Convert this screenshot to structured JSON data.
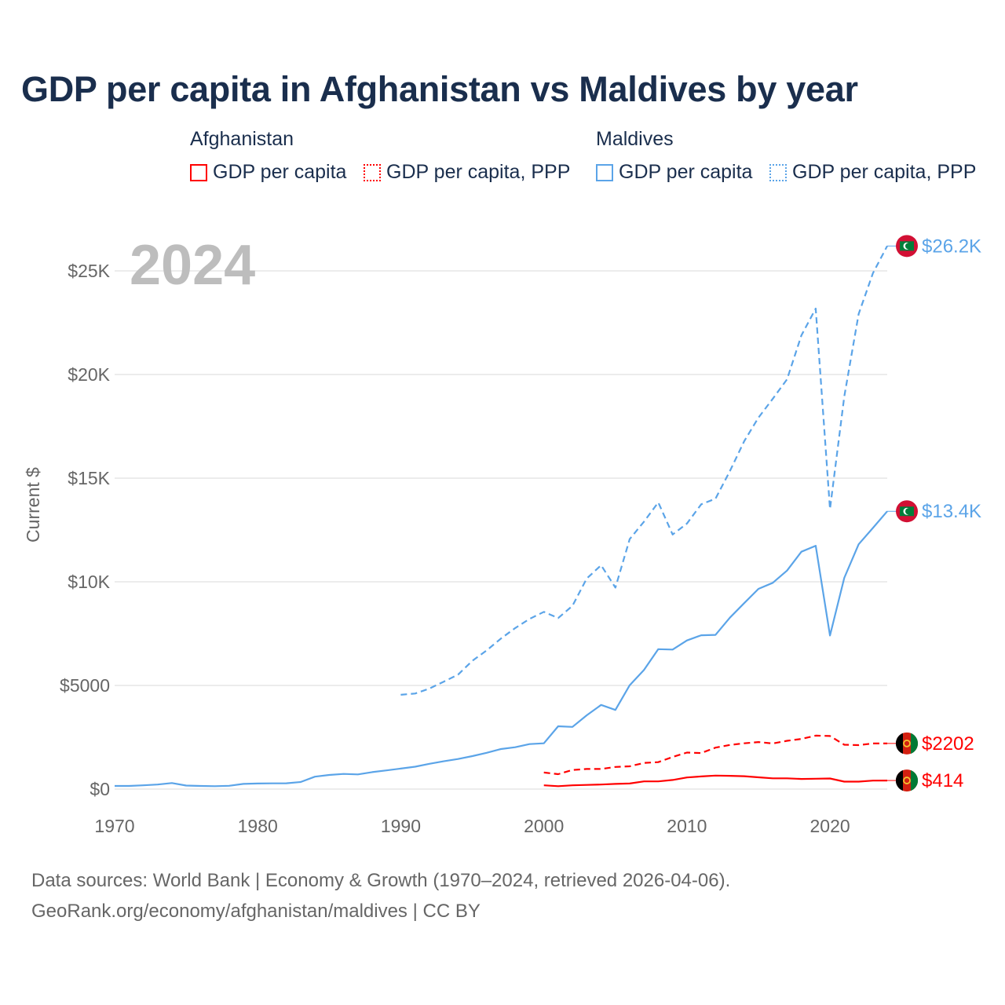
{
  "chart_data": {
    "type": "line",
    "title": "GDP per capita in Afghanistan vs Maldives by year",
    "ylabel": "Current $",
    "xlabel": "",
    "ylim": [
      0,
      27000
    ],
    "xlim": [
      1970,
      2024
    ],
    "x_ticks": [
      1970,
      1980,
      1990,
      2000,
      2010,
      2020
    ],
    "x_tick_labels": [
      "1970",
      "1980",
      "1990",
      "2000",
      "2010",
      "2020"
    ],
    "y_ticks": [
      0,
      5000,
      10000,
      15000,
      20000,
      25000
    ],
    "y_tick_labels": [
      "$0",
      "$5000",
      "$10K",
      "$15K",
      "$20K",
      "$25K"
    ],
    "grid": true,
    "year_watermark": "2024",
    "legend": {
      "placement": "top",
      "groups": [
        {
          "country": "Afghanistan",
          "items": [
            "GDP per capita",
            "GDP per capita, PPP"
          ]
        },
        {
          "country": "Maldives",
          "items": [
            "GDP per capita",
            "GDP per capita, PPP"
          ]
        }
      ]
    },
    "series": [
      {
        "name": "Maldives GDP per capita, PPP",
        "country": "Maldives",
        "color": "#5ba4e8",
        "dash": true,
        "end_label": "$26.2K",
        "start_year": 1990,
        "values": [
          4550,
          4610,
          4850,
          5180,
          5520,
          6190,
          6690,
          7260,
          7770,
          8210,
          8550,
          8250,
          8840,
          10160,
          10800,
          9720,
          12060,
          12900,
          13830,
          12280,
          12810,
          13740,
          14010,
          15340,
          16780,
          17920,
          18830,
          19770,
          21890,
          23180,
          13510,
          18940,
          22920,
          24890,
          26200
        ]
      },
      {
        "name": "Maldives GDP per capita",
        "country": "Maldives",
        "color": "#5ba4e8",
        "dash": false,
        "end_label": "$13.4K",
        "start_year": 1970,
        "values": [
          150,
          150,
          180,
          220,
          290,
          170,
          150,
          140,
          160,
          250,
          270,
          275,
          280,
          340,
          600,
          680,
          730,
          710,
          820,
          900,
          990,
          1080,
          1220,
          1340,
          1450,
          1590,
          1750,
          1930,
          2020,
          2170,
          2210,
          3030,
          3000,
          3560,
          4060,
          3820,
          5010,
          5750,
          6750,
          6730,
          7170,
          7420,
          7440,
          8270,
          8970,
          9660,
          9950,
          10540,
          11450,
          11740,
          7410,
          10190,
          11810,
          12600,
          13400
        ]
      },
      {
        "name": "Afghanistan GDP per capita, PPP",
        "country": "Afghanistan",
        "color": "#ff0000",
        "dash": true,
        "end_label": "$2202",
        "start_year": 2000,
        "values": [
          800,
          720,
          920,
          970,
          970,
          1070,
          1100,
          1260,
          1300,
          1550,
          1760,
          1740,
          2000,
          2130,
          2210,
          2270,
          2200,
          2330,
          2420,
          2580,
          2560,
          2140,
          2120,
          2200,
          2202
        ]
      },
      {
        "name": "Afghanistan GDP per capita",
        "country": "Afghanistan",
        "color": "#ff0000",
        "dash": false,
        "end_label": "$414",
        "start_year": 2000,
        "values": [
          180,
          140,
          180,
          200,
          220,
          250,
          270,
          370,
          370,
          440,
          560,
          610,
          650,
          640,
          620,
          570,
          520,
          520,
          490,
          500,
          510,
          360,
          360,
          410,
          414
        ]
      }
    ],
    "footer": [
      "Data sources: World Bank | Economy & Growth (1970–2024, retrieved 2026-04-06).",
      "GeoRank.org/economy/afghanistan/maldives | CC BY"
    ]
  }
}
